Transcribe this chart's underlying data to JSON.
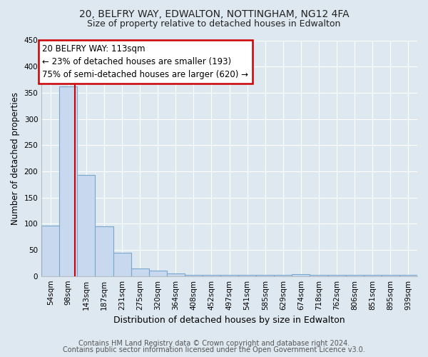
{
  "title1": "20, BELFRY WAY, EDWALTON, NOTTINGHAM, NG12 4FA",
  "title2": "Size of property relative to detached houses in Edwalton",
  "xlabel": "Distribution of detached houses by size in Edwalton",
  "ylabel": "Number of detached properties",
  "categories": [
    "54sqm",
    "98sqm",
    "143sqm",
    "187sqm",
    "231sqm",
    "275sqm",
    "320sqm",
    "364sqm",
    "408sqm",
    "452sqm",
    "497sqm",
    "541sqm",
    "585sqm",
    "629sqm",
    "674sqm",
    "718sqm",
    "762sqm",
    "806sqm",
    "851sqm",
    "895sqm",
    "939sqm"
  ],
  "values": [
    97,
    362,
    193,
    95,
    45,
    15,
    10,
    5,
    2,
    2,
    2,
    2,
    2,
    2,
    4,
    2,
    2,
    2,
    2,
    2,
    2
  ],
  "bar_color": "#c8d8ee",
  "bar_edge_color": "#7aa8cc",
  "property_line_x": 1.35,
  "annotation_title": "20 BELFRY WAY: 113sqm",
  "annotation_line1": "← 23% of detached houses are smaller (193)",
  "annotation_line2": "75% of semi-detached houses are larger (620) →",
  "annotation_box_color": "#ffffff",
  "annotation_box_edge": "#cc0000",
  "property_line_color": "#cc0000",
  "ylim": [
    0,
    450
  ],
  "yticks": [
    0,
    50,
    100,
    150,
    200,
    250,
    300,
    350,
    400,
    450
  ],
  "footnote1": "Contains HM Land Registry data © Crown copyright and database right 2024.",
  "footnote2": "Contains public sector information licensed under the Open Government Licence v3.0.",
  "title1_fontsize": 10,
  "title2_fontsize": 9,
  "xlabel_fontsize": 9,
  "ylabel_fontsize": 8.5,
  "tick_fontsize": 7.5,
  "annotation_fontsize": 8.5,
  "footnote_fontsize": 7,
  "bg_color": "#dde8f0"
}
